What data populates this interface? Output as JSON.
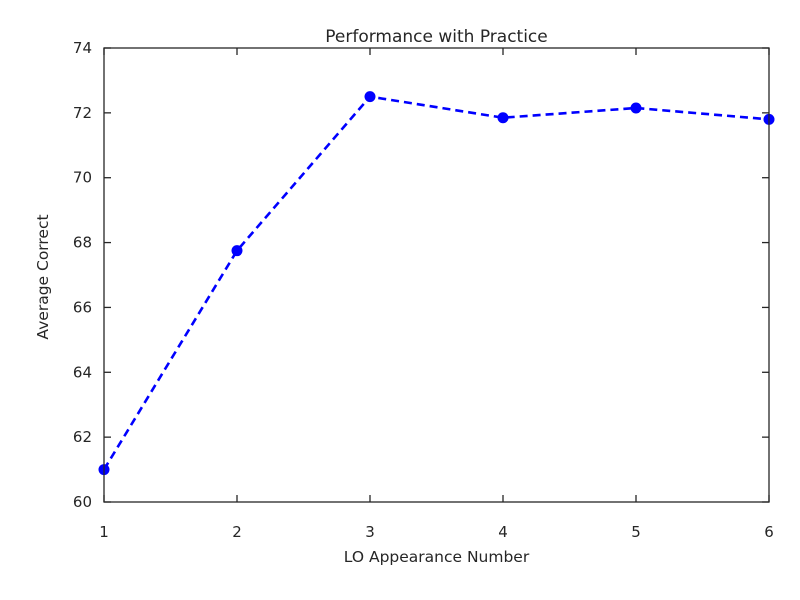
{
  "chart_data": {
    "type": "line",
    "title": "Performance with Practice",
    "xlabel": "LO Appearance Number",
    "ylabel": "Average Correct",
    "x": [
      1,
      2,
      3,
      4,
      5,
      6
    ],
    "series": [
      {
        "values": [
          61.0,
          67.75,
          72.5,
          71.85,
          72.15,
          71.8
        ]
      }
    ],
    "xlim": [
      1,
      6
    ],
    "ylim": [
      60,
      74
    ],
    "xticks": [
      "1",
      "2",
      "3",
      "4",
      "5",
      "6"
    ],
    "yticks": [
      "60",
      "62",
      "64",
      "66",
      "68",
      "70",
      "72",
      "74"
    ],
    "line_style": "dashed",
    "marker": "circle",
    "color": "#0000ff",
    "grid": false
  }
}
